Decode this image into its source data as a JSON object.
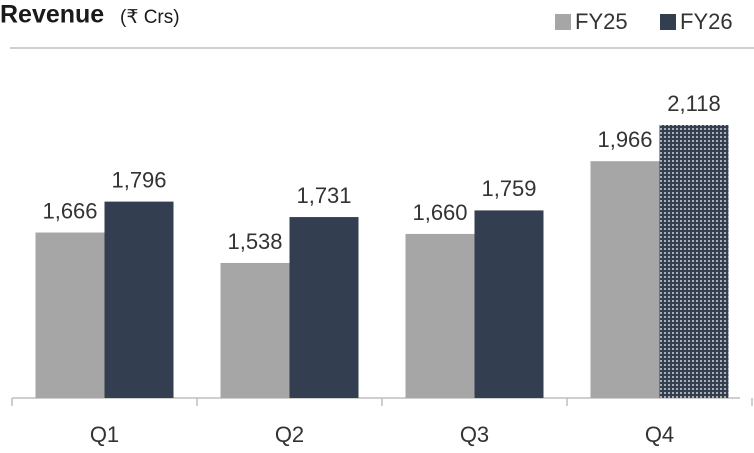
{
  "chart_data": {
    "type": "bar",
    "title": "Revenue",
    "subtitle": "(₹ Crs)",
    "categories": [
      "Q1",
      "Q2",
      "Q3",
      "Q4"
    ],
    "series": [
      {
        "name": "FY25",
        "color": "#a6a6a6",
        "values": [
          1666,
          1538,
          1660,
          1966
        ],
        "value_labels": [
          "1,666",
          "1,538",
          "1,660",
          "1,966"
        ]
      },
      {
        "name": "FY26",
        "color": "#333f50",
        "values": [
          1796,
          1731,
          1759,
          2118
        ],
        "value_labels": [
          "1,796",
          "1,731",
          "1,759",
          "2,118"
        ],
        "dotted": [
          false,
          false,
          false,
          true
        ]
      }
    ],
    "ylim": [
      970,
      2400
    ],
    "legend": "top-right"
  }
}
